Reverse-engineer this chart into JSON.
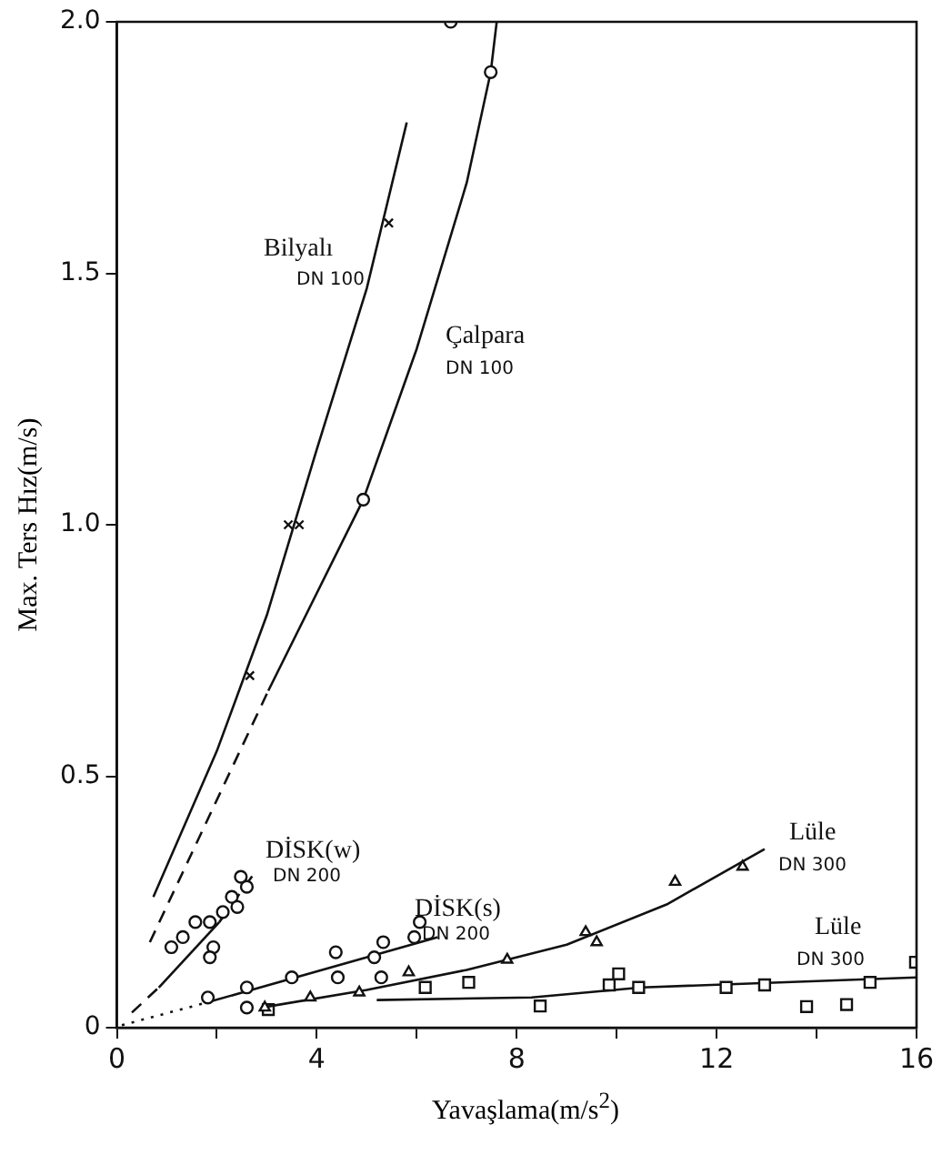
{
  "chart_data": {
    "type": "scatter",
    "xlabel": "Yavaşlama(m/s$^{2}$)",
    "ylabel": "Max. Ters Hız(m/s)",
    "xlim": [
      0,
      16
    ],
    "ylim": [
      0,
      2
    ],
    "xticks": [
      0,
      {
        "value": 2,
        "label": null
      },
      4,
      {
        "value": 6,
        "label": null
      },
      8,
      {
        "value": 10,
        "label": null
      },
      12,
      {
        "value": 14,
        "label": null
      },
      16
    ],
    "yticks": [
      0,
      {
        "value": 0.5,
        "label": "0.5"
      },
      {
        "value": 1,
        "label": "1.0"
      },
      {
        "value": 1.5,
        "label": "1.5"
      },
      {
        "value": 2,
        "label": "2.0"
      }
    ],
    "grid": false,
    "legend": false,
    "series": [
      {
        "marker": "cross",
        "color": "#111111",
        "x": [
          2.66,
          3.43,
          3.65,
          5.44
        ],
        "values": [
          0.7,
          1.0,
          1.0,
          1.6
        ]
      },
      {
        "type": "line",
        "marker": "none",
        "line_style": "solid",
        "color": "#111111",
        "x": [
          0.73,
          2.0,
          3.0,
          4.0,
          5.0,
          5.8
        ],
        "values": [
          0.26,
          0.55,
          0.82,
          1.15,
          1.47,
          1.8
        ]
      },
      {
        "marker": "circle",
        "color": "#111111",
        "x": [
          4.93,
          7.48,
          6.68
        ],
        "values": [
          1.05,
          1.9,
          2.0
        ]
      },
      {
        "type": "line",
        "marker": "none",
        "line_style": "dashed",
        "color": "#111111",
        "x": [
          0.66,
          3.03
        ],
        "values": [
          0.17,
          0.67
        ]
      },
      {
        "type": "line",
        "marker": "none",
        "line_style": "solid",
        "color": "#111111",
        "x": [
          3.03,
          4.93,
          6.0,
          7.0,
          7.48,
          7.6
        ],
        "values": [
          0.67,
          1.05,
          1.35,
          1.68,
          1.9,
          2.0
        ]
      },
      {
        "marker": "circle",
        "color": "#111111",
        "x": [
          1.09,
          1.32,
          1.57,
          1.86,
          1.93,
          1.86,
          2.12,
          2.3,
          2.48,
          2.6,
          2.41
        ],
        "values": [
          0.16,
          0.18,
          0.21,
          0.21,
          0.16,
          0.14,
          0.23,
          0.26,
          0.3,
          0.28,
          0.24
        ]
      },
      {
        "type": "line",
        "marker": "none",
        "line_style": "dashed",
        "color": "#111111",
        "x": [
          0.3,
          0.84
        ],
        "values": [
          0.03,
          0.08
        ]
      },
      {
        "type": "line",
        "marker": "none",
        "line_style": "solid",
        "color": "#111111",
        "x": [
          0.84,
          2.05
        ],
        "values": [
          0.08,
          0.21
        ]
      },
      {
        "type": "line",
        "marker": "none",
        "line_style": "dashed",
        "color": "#111111",
        "x": [
          2.05,
          2.77
        ],
        "values": [
          0.21,
          0.31
        ]
      },
      {
        "marker": "circle",
        "color": "#111111",
        "x": [
          1.82,
          2.6,
          2.6,
          3.5,
          4.38,
          4.42,
          5.15,
          5.29,
          5.33,
          5.95,
          6.06
        ],
        "values": [
          0.06,
          0.08,
          0.04,
          0.1,
          0.15,
          0.1,
          0.14,
          0.1,
          0.17,
          0.18,
          0.21
        ]
      },
      {
        "type": "line",
        "marker": "none",
        "line_style": "dotted",
        "color": "#111111",
        "x": [
          0.1,
          1.8
        ],
        "values": [
          0.005,
          0.05
        ]
      },
      {
        "type": "line",
        "marker": "none",
        "line_style": "solid",
        "color": "#111111",
        "x": [
          1.8,
          6.42
        ],
        "values": [
          0.05,
          0.18
        ]
      },
      {
        "marker": "triangle",
        "color": "#111111",
        "x": [
          2.96,
          3.87,
          4.85,
          5.84,
          7.81,
          9.38,
          9.6,
          11.17,
          12.52
        ],
        "values": [
          0.04,
          0.06,
          0.07,
          0.11,
          0.135,
          0.19,
          0.17,
          0.29,
          0.32
        ]
      },
      {
        "type": "line",
        "marker": "none",
        "line_style": "solid",
        "color": "#111111",
        "x": [
          2.9,
          5.0,
          7.0,
          9.0,
          11.0,
          12.96
        ],
        "values": [
          0.04,
          0.075,
          0.115,
          0.165,
          0.245,
          0.355
        ]
      },
      {
        "marker": "square",
        "color": "#111111",
        "x": [
          3.03,
          6.17,
          7.04,
          8.47,
          9.85,
          10.04,
          10.44,
          12.19,
          12.96,
          13.8,
          14.6,
          15.07,
          15.98
        ],
        "values": [
          0.036,
          0.08,
          0.09,
          0.043,
          0.085,
          0.107,
          0.08,
          0.08,
          0.085,
          0.042,
          0.046,
          0.09,
          0.13
        ]
      },
      {
        "type": "line",
        "marker": "none",
        "line_style": "solid",
        "color": "#111111",
        "x": [
          5.2,
          8.3,
          10.5,
          16.0
        ],
        "values": [
          0.055,
          0.06,
          0.08,
          0.1
        ]
      }
    ],
    "annotations": [
      "Bilyalı",
      "DN 100",
      "Çalpara",
      "DN 100",
      "DİSK(w)",
      "DN 200",
      "DİSK(s)",
      "DN 200",
      "Lüle",
      "DN 300",
      "Lüle",
      "DN 300"
    ]
  }
}
